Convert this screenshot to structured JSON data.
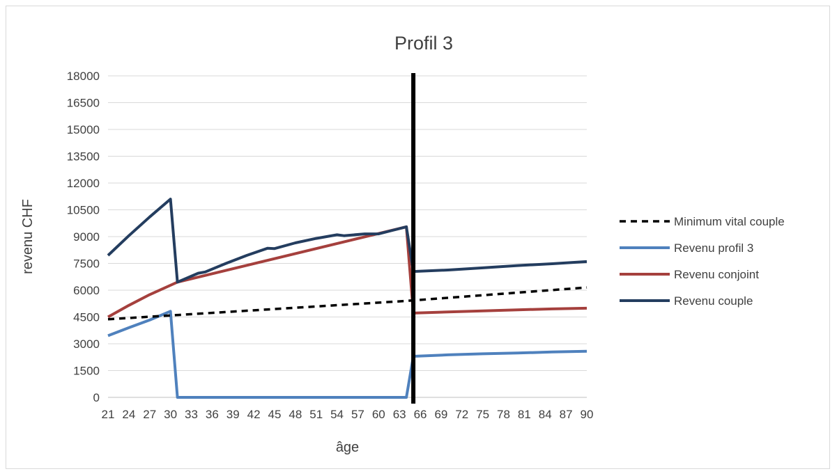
{
  "chart_data": {
    "type": "line",
    "title": "Profil 3",
    "xlabel": "âge",
    "ylabel": "revenu CHF",
    "ylim": [
      0,
      18000
    ],
    "yticks": [
      0,
      1500,
      3000,
      4500,
      6000,
      7500,
      9000,
      10500,
      12000,
      13500,
      15000,
      16500,
      18000
    ],
    "xlim": [
      21,
      90
    ],
    "xticks": [
      21,
      24,
      27,
      30,
      33,
      36,
      39,
      42,
      45,
      48,
      51,
      54,
      57,
      60,
      63,
      66,
      69,
      72,
      75,
      78,
      81,
      84,
      87,
      90
    ],
    "grid": "horizontal",
    "legend_position": "right",
    "vertical_marker": {
      "x": 65
    },
    "series": [
      {
        "name": "Minimum vital couple",
        "color": "#000000",
        "style": "dashed",
        "points": [
          [
            21,
            4370
          ],
          [
            64,
            5400
          ],
          [
            90,
            6150
          ]
        ]
      },
      {
        "name": "Revenu profil 3",
        "color": "#4f81bd",
        "style": "solid",
        "points": [
          [
            21,
            3450
          ],
          [
            24,
            3900
          ],
          [
            27,
            4330
          ],
          [
            30,
            4820
          ],
          [
            31,
            0
          ],
          [
            64,
            0
          ],
          [
            65,
            2300
          ],
          [
            70,
            2380
          ],
          [
            75,
            2440
          ],
          [
            80,
            2480
          ],
          [
            85,
            2540
          ],
          [
            90,
            2580
          ]
        ]
      },
      {
        "name": "Revenu conjoint",
        "color": "#a5403d",
        "style": "solid",
        "points": [
          [
            21,
            4500
          ],
          [
            24,
            5150
          ],
          [
            27,
            5750
          ],
          [
            31,
            6450
          ],
          [
            64,
            9550
          ],
          [
            65,
            4720
          ],
          [
            70,
            4780
          ],
          [
            75,
            4840
          ],
          [
            80,
            4900
          ],
          [
            85,
            4950
          ],
          [
            90,
            4990
          ]
        ]
      },
      {
        "name": "Revenu couple",
        "color": "#243d5f",
        "style": "solid",
        "points": [
          [
            21,
            7950
          ],
          [
            24,
            9050
          ],
          [
            27,
            10100
          ],
          [
            30,
            11100
          ],
          [
            31,
            6450
          ],
          [
            34,
            6950
          ],
          [
            35,
            7020
          ],
          [
            38,
            7500
          ],
          [
            41,
            7950
          ],
          [
            44,
            8350
          ],
          [
            45,
            8330
          ],
          [
            48,
            8650
          ],
          [
            51,
            8900
          ],
          [
            54,
            9100
          ],
          [
            55,
            9050
          ],
          [
            58,
            9150
          ],
          [
            60,
            9150
          ],
          [
            62,
            9350
          ],
          [
            64,
            9550
          ],
          [
            65,
            7050
          ],
          [
            70,
            7130
          ],
          [
            75,
            7250
          ],
          [
            80,
            7380
          ],
          [
            85,
            7480
          ],
          [
            90,
            7600
          ]
        ]
      }
    ]
  }
}
